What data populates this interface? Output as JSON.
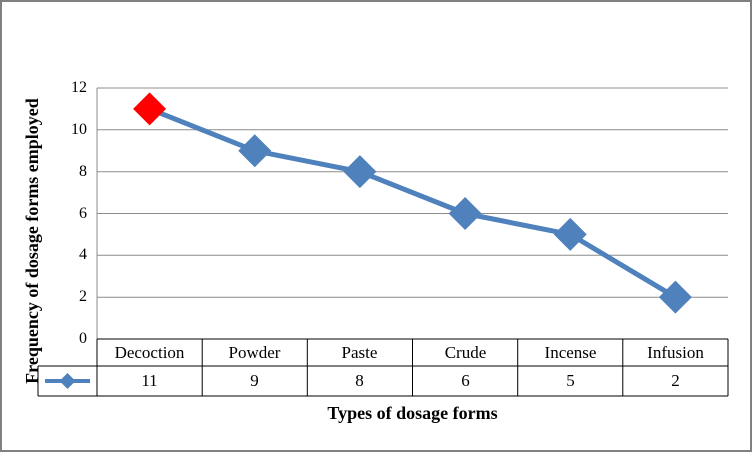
{
  "chart_data": {
    "type": "line",
    "categories": [
      "Decoction",
      "Powder",
      "Paste",
      "Crude",
      "Incense",
      "Infusion"
    ],
    "series": [
      {
        "name": "",
        "values": [
          11,
          9,
          8,
          6,
          5,
          2
        ],
        "color": "#4F81BD",
        "marker": "diamond"
      }
    ],
    "highlight_point": {
      "index": 0,
      "color": "#FF0000"
    },
    "title": "",
    "xlabel": "Types of dosage forms",
    "ylabel": "Frequency of dosage forms employed",
    "ylim": [
      0,
      12
    ],
    "yticks": [
      0,
      2,
      4,
      6,
      8,
      10,
      12
    ],
    "grid": true,
    "gridline_color": "#8C8C8C",
    "axis_color": "#8C8C8C",
    "table_border_color": "#000000",
    "legend_position": "data-table-left",
    "data_table_shown": true
  }
}
